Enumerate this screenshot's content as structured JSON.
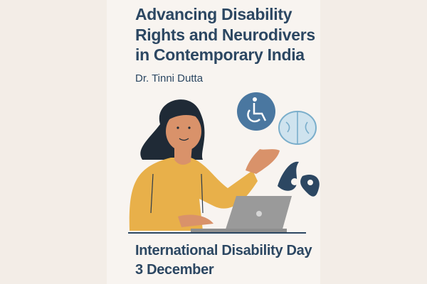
{
  "title_lines": [
    "Advancing Disability",
    "Rights and Neurodivers",
    "in Contemporary India"
  ],
  "author": "Dr. Tinni Dutta",
  "event": "International Disability Day",
  "date": "3 December",
  "icons": [
    "wheelchair-icon",
    "brain-icon",
    "sign-language-hand-icon",
    "laptop-icon"
  ],
  "colors": {
    "text": "#2c4762",
    "accent_blue": "#4a77a0",
    "brain": "#cfe3ee",
    "sweater": "#e8b04a",
    "skin": "#d9926a",
    "hair": "#1f2a36",
    "laptop": "#9a9a9a",
    "background": "#f8f4f0"
  }
}
